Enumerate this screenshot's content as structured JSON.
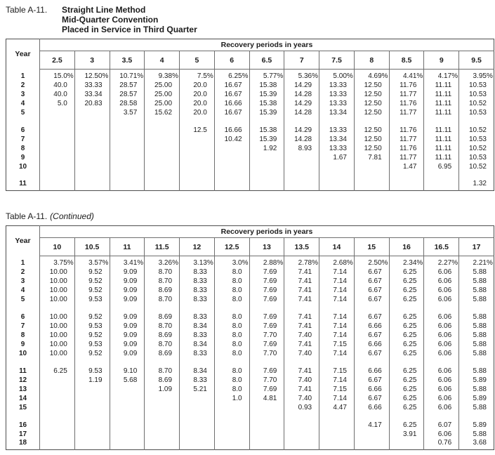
{
  "table1": {
    "title_label": "Table A-11.",
    "title_lines": [
      "Straight Line Method",
      "Mid-Quarter Convention",
      "Placed in Service in Third Quarter"
    ],
    "header": {
      "year": "Year",
      "span": "Recovery periods in years",
      "periods": [
        "2.5",
        "3",
        "3.5",
        "4",
        "5",
        "6",
        "6.5",
        "7",
        "7.5",
        "8",
        "8.5",
        "9",
        "9.5"
      ]
    },
    "rows": [
      {
        "year": "1",
        "values": [
          "15.0%",
          "12.50%",
          "10.71%",
          "9.38%",
          "7.5%",
          "6.25%",
          "5.77%",
          "5.36%",
          "5.00%",
          "4.69%",
          "4.41%",
          "4.17%",
          "3.95%"
        ]
      },
      {
        "year": "2",
        "values": [
          "40.0",
          "33.33",
          "28.57",
          "25.00",
          "20.0",
          "16.67",
          "15.38",
          "14.29",
          "13.33",
          "12.50",
          "11.76",
          "11.11",
          "10.53"
        ]
      },
      {
        "year": "3",
        "values": [
          "40.0",
          "33.34",
          "28.57",
          "25.00",
          "20.0",
          "16.67",
          "15.39",
          "14.28",
          "13.33",
          "12.50",
          "11.77",
          "11.11",
          "10.53"
        ]
      },
      {
        "year": "4",
        "values": [
          "5.0",
          "20.83",
          "28.58",
          "25.00",
          "20.0",
          "16.66",
          "15.38",
          "14.29",
          "13.33",
          "12.50",
          "11.76",
          "11.11",
          "10.52"
        ]
      },
      {
        "year": "5",
        "values": [
          "",
          "",
          "3.57",
          "15.62",
          "20.0",
          "16.67",
          "15.39",
          "14.28",
          "13.34",
          "12.50",
          "11.77",
          "11.11",
          "10.53"
        ]
      },
      "gap",
      {
        "year": "6",
        "values": [
          "",
          "",
          "",
          "",
          "12.5",
          "16.66",
          "15.38",
          "14.29",
          "13.33",
          "12.50",
          "11.76",
          "11.11",
          "10.52"
        ]
      },
      {
        "year": "7",
        "values": [
          "",
          "",
          "",
          "",
          "",
          "10.42",
          "15.39",
          "14.28",
          "13.34",
          "12.50",
          "11.77",
          "11.11",
          "10.53"
        ]
      },
      {
        "year": "8",
        "values": [
          "",
          "",
          "",
          "",
          "",
          "",
          "1.92",
          "8.93",
          "13.33",
          "12.50",
          "11.76",
          "11.11",
          "10.52"
        ]
      },
      {
        "year": "9",
        "values": [
          "",
          "",
          "",
          "",
          "",
          "",
          "",
          "",
          "1.67",
          "7.81",
          "11.77",
          "11.11",
          "10.53"
        ]
      },
      {
        "year": "10",
        "values": [
          "",
          "",
          "",
          "",
          "",
          "",
          "",
          "",
          "",
          "",
          "1.47",
          "6.95",
          "10.52"
        ]
      },
      "gap",
      {
        "year": "11",
        "values": [
          "",
          "",
          "",
          "",
          "",
          "",
          "",
          "",
          "",
          "",
          "",
          "",
          "1.32"
        ]
      }
    ]
  },
  "table2": {
    "title_label": "Table A-11.",
    "title_continued": "(Continued)",
    "header": {
      "year": "Year",
      "span": "Recovery periods in years",
      "periods": [
        "10",
        "10.5",
        "11",
        "11.5",
        "12",
        "12.5",
        "13",
        "13.5",
        "14",
        "15",
        "16",
        "16.5",
        "17"
      ]
    },
    "rows": [
      {
        "year": "1",
        "values": [
          "3.75%",
          "3.57%",
          "3.41%",
          "3.26%",
          "3.13%",
          "3.0%",
          "2.88%",
          "2.78%",
          "2.68%",
          "2.50%",
          "2.34%",
          "2.27%",
          "2.21%"
        ]
      },
      {
        "year": "2",
        "values": [
          "10.00",
          "9.52",
          "9.09",
          "8.70",
          "8.33",
          "8.0",
          "7.69",
          "7.41",
          "7.14",
          "6.67",
          "6.25",
          "6.06",
          "5.88"
        ]
      },
      {
        "year": "3",
        "values": [
          "10.00",
          "9.52",
          "9.09",
          "8.70",
          "8.33",
          "8.0",
          "7.69",
          "7.41",
          "7.14",
          "6.67",
          "6.25",
          "6.06",
          "5.88"
        ]
      },
      {
        "year": "4",
        "values": [
          "10.00",
          "9.52",
          "9.09",
          "8.69",
          "8.33",
          "8.0",
          "7.69",
          "7.41",
          "7.14",
          "6.67",
          "6.25",
          "6.06",
          "5.88"
        ]
      },
      {
        "year": "5",
        "values": [
          "10.00",
          "9.53",
          "9.09",
          "8.70",
          "8.33",
          "8.0",
          "7.69",
          "7.41",
          "7.14",
          "6.67",
          "6.25",
          "6.06",
          "5.88"
        ]
      },
      "gap",
      {
        "year": "6",
        "values": [
          "10.00",
          "9.52",
          "9.09",
          "8.69",
          "8.33",
          "8.0",
          "7.69",
          "7.41",
          "7.14",
          "6.67",
          "6.25",
          "6.06",
          "5.88"
        ]
      },
      {
        "year": "7",
        "values": [
          "10.00",
          "9.53",
          "9.09",
          "8.70",
          "8.34",
          "8.0",
          "7.69",
          "7.41",
          "7.14",
          "6.66",
          "6.25",
          "6.06",
          "5.88"
        ]
      },
      {
        "year": "8",
        "values": [
          "10.00",
          "9.52",
          "9.09",
          "8.69",
          "8.33",
          "8.0",
          "7.70",
          "7.40",
          "7.14",
          "6.67",
          "6.25",
          "6.06",
          "5.88"
        ]
      },
      {
        "year": "9",
        "values": [
          "10.00",
          "9.53",
          "9.09",
          "8.70",
          "8.34",
          "8.0",
          "7.69",
          "7.41",
          "7.15",
          "6.66",
          "6.25",
          "6.06",
          "5.88"
        ]
      },
      {
        "year": "10",
        "values": [
          "10.00",
          "9.52",
          "9.09",
          "8.69",
          "8.33",
          "8.0",
          "7.70",
          "7.40",
          "7.14",
          "6.67",
          "6.25",
          "6.06",
          "5.88"
        ]
      },
      "gap",
      {
        "year": "11",
        "values": [
          "6.25",
          "9.53",
          "9.10",
          "8.70",
          "8.34",
          "8.0",
          "7.69",
          "7.41",
          "7.15",
          "6.66",
          "6.25",
          "6.06",
          "5.88"
        ]
      },
      {
        "year": "12",
        "values": [
          "",
          "1.19",
          "5.68",
          "8.69",
          "8.33",
          "8.0",
          "7.70",
          "7.40",
          "7.14",
          "6.67",
          "6.25",
          "6.06",
          "5.89"
        ]
      },
      {
        "year": "13",
        "values": [
          "",
          "",
          "",
          "1.09",
          "5.21",
          "8.0",
          "7.69",
          "7.41",
          "7.15",
          "6.66",
          "6.25",
          "6.06",
          "5.88"
        ]
      },
      {
        "year": "14",
        "values": [
          "",
          "",
          "",
          "",
          "",
          "1.0",
          "4.81",
          "7.40",
          "7.14",
          "6.67",
          "6.25",
          "6.06",
          "5.89"
        ]
      },
      {
        "year": "15",
        "values": [
          "",
          "",
          "",
          "",
          "",
          "",
          "",
          "0.93",
          "4.47",
          "6.66",
          "6.25",
          "6.06",
          "5.88"
        ]
      },
      "gap",
      {
        "year": "16",
        "values": [
          "",
          "",
          "",
          "",
          "",
          "",
          "",
          "",
          "",
          "4.17",
          "6.25",
          "6.07",
          "5.89"
        ]
      },
      {
        "year": "17",
        "values": [
          "",
          "",
          "",
          "",
          "",
          "",
          "",
          "",
          "",
          "",
          "3.91",
          "6.06",
          "5.88"
        ]
      },
      {
        "year": "18",
        "values": [
          "",
          "",
          "",
          "",
          "",
          "",
          "",
          "",
          "",
          "",
          "",
          "0.76",
          "3.68"
        ]
      }
    ]
  }
}
